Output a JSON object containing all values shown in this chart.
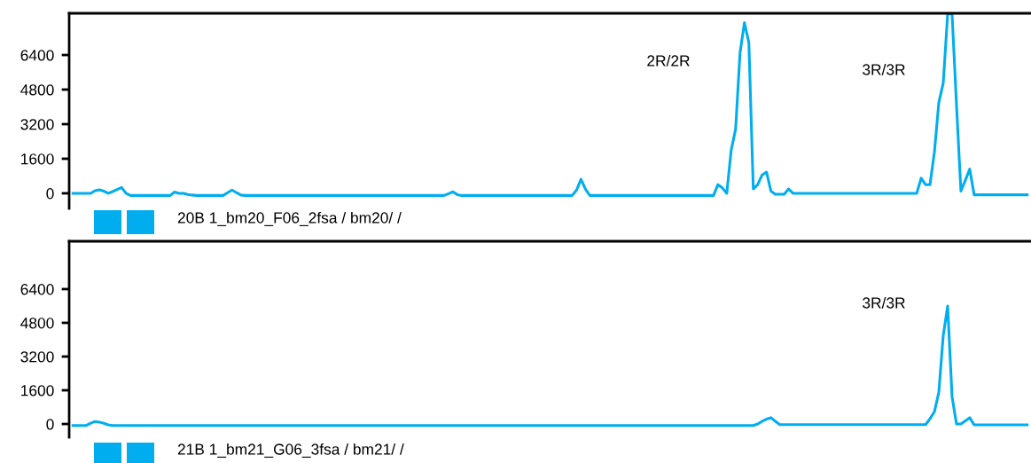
{
  "chart_data": [
    {
      "type": "line",
      "categories": [
        null,
        null,
        null,
        null,
        null,
        null,
        null,
        null,
        null,
        null,
        null,
        null,
        null,
        null,
        null,
        null,
        null,
        null,
        null,
        null,
        null,
        null,
        null,
        null,
        null,
        null,
        null,
        null,
        null,
        null,
        null,
        null,
        null,
        null,
        null,
        null,
        null,
        null,
        null,
        null,
        null,
        null,
        null,
        null,
        null,
        null,
        null,
        null,
        null,
        null,
        null,
        null,
        null,
        null,
        null,
        null,
        null,
        null,
        null,
        null,
        null,
        null,
        null,
        null,
        null,
        null,
        null,
        null,
        null,
        null,
        null,
        null,
        null,
        null,
        null,
        null,
        null,
        null,
        null,
        null,
        null,
        null,
        null,
        null,
        null,
        null,
        null,
        null,
        null,
        null,
        null,
        null,
        null,
        null,
        null,
        null,
        null,
        null,
        null,
        null,
        null,
        null,
        null,
        null,
        null,
        null,
        null,
        null,
        null,
        null,
        null,
        null,
        null,
        null,
        null,
        null,
        null,
        null,
        null,
        null,
        null,
        null,
        null,
        null,
        null,
        null,
        null,
        null,
        null,
        null,
        null,
        null,
        null,
        null,
        null,
        null,
        null,
        null,
        null,
        null,
        null,
        null,
        null,
        null,
        null,
        null,
        null,
        null,
        null,
        null,
        null,
        null,
        null,
        null,
        null,
        null,
        null,
        null,
        null,
        null,
        null,
        null,
        null,
        null,
        null,
        null,
        null,
        null,
        null,
        null,
        null,
        null,
        null,
        null,
        null,
        null,
        null,
        null,
        null,
        null,
        null,
        null,
        null,
        null,
        null,
        null,
        null,
        null,
        null,
        null,
        null,
        null,
        null,
        null,
        null,
        null,
        null,
        null,
        null,
        null,
        null,
        null,
        null,
        null,
        null,
        null,
        null,
        null,
        null,
        null,
        null,
        null,
        null,
        null,
        null,
        null,
        null
      ],
      "series": [
        {
          "color": "#00aeef",
          "values": [
            0,
            0,
            0,
            0,
            0,
            120,
            160,
            100,
            0,
            80,
            180,
            270,
            0,
            -100,
            -100,
            -100,
            -100,
            -100,
            -100,
            -100,
            -100,
            -100,
            -100,
            60,
            0,
            0,
            -50,
            -80,
            -100,
            -100,
            -100,
            -100,
            -100,
            -100,
            -100,
            30,
            150,
            30,
            -80,
            -100,
            -100,
            -100,
            -100,
            -100,
            -100,
            -100,
            -100,
            -100,
            -100,
            -100,
            -100,
            -100,
            -100,
            -100,
            -100,
            -100,
            -100,
            -100,
            -100,
            -100,
            -100,
            -100,
            -100,
            -100,
            -100,
            -100,
            -100,
            -100,
            -100,
            -100,
            -100,
            -100,
            -100,
            -100,
            -100,
            -100,
            -100,
            -100,
            -100,
            -100,
            -100,
            -100,
            -100,
            -100,
            -100,
            -20,
            70,
            -60,
            -100,
            -100,
            -100,
            -100,
            -100,
            -100,
            -100,
            -100,
            -100,
            -100,
            -100,
            -100,
            -100,
            -100,
            -100,
            -100,
            -100,
            -100,
            -100,
            -100,
            -100,
            -100,
            -100,
            -100,
            -100,
            -100,
            150,
            650,
            200,
            -100,
            -100,
            -100,
            -100,
            -100,
            -100,
            -100,
            -100,
            -100,
            -100,
            -100,
            -100,
            -100,
            -100,
            -100,
            -100,
            -100,
            -100,
            -100,
            -100,
            -100,
            -100,
            -100,
            -100,
            -100,
            -100,
            -100,
            -100,
            -100,
            400,
            250,
            0,
            2000,
            2970,
            6500,
            7900,
            6970,
            200,
            400,
            850,
            980,
            100,
            -40,
            -40,
            -40,
            200,
            0,
            0,
            0,
            0,
            0,
            0,
            0,
            0,
            0,
            0,
            0,
            0,
            0,
            0,
            0,
            0,
            0,
            0,
            0,
            0,
            0,
            0,
            0,
            0,
            0,
            0,
            0,
            0,
            0,
            700,
            400,
            400,
            1900,
            4200,
            5100,
            8300,
            8300,
            4100,
            100,
            600,
            1120,
            -70,
            -70,
            -70,
            -70,
            -70,
            -70,
            -70,
            -70,
            -70,
            -70,
            -70,
            -70,
            -70
          ]
        }
      ],
      "ylim": [
        -700,
        8330
      ],
      "yticks": [
        0,
        1600,
        3200,
        4800,
        6400
      ],
      "annotations": [
        "2R/2R",
        "3R/3R",
        "20B 1_bm20_F06_2fsa / bm20/ /"
      ],
      "tick_labels": "y",
      "grid": false,
      "legend": false
    },
    {
      "type": "line",
      "categories": [
        null,
        null,
        null,
        null,
        null,
        null,
        null,
        null,
        null,
        null,
        null,
        null,
        null,
        null,
        null,
        null,
        null,
        null,
        null,
        null,
        null,
        null,
        null,
        null,
        null,
        null,
        null,
        null,
        null,
        null,
        null,
        null,
        null,
        null,
        null,
        null,
        null,
        null,
        null,
        null,
        null,
        null,
        null,
        null,
        null,
        null,
        null,
        null,
        null,
        null,
        null,
        null,
        null,
        null,
        null,
        null,
        null,
        null,
        null,
        null,
        null,
        null,
        null,
        null,
        null,
        null,
        null,
        null,
        null,
        null,
        null,
        null,
        null,
        null,
        null,
        null,
        null,
        null,
        null,
        null,
        null,
        null,
        null,
        null,
        null,
        null,
        null,
        null,
        null,
        null,
        null,
        null,
        null,
        null,
        null,
        null,
        null,
        null,
        null,
        null,
        null,
        null,
        null,
        null,
        null,
        null,
        null,
        null,
        null,
        null,
        null,
        null,
        null,
        null,
        null,
        null,
        null,
        null,
        null,
        null,
        null,
        null,
        null,
        null,
        null,
        null,
        null,
        null,
        null,
        null,
        null,
        null,
        null,
        null,
        null,
        null,
        null,
        null,
        null,
        null,
        null,
        null,
        null,
        null,
        null,
        null,
        null,
        null,
        null,
        null,
        null,
        null,
        null,
        null,
        null,
        null,
        null,
        null,
        null,
        null,
        null,
        null,
        null,
        null,
        null,
        null,
        null,
        null,
        null,
        null,
        null,
        null,
        null,
        null,
        null,
        null,
        null,
        null,
        null,
        null,
        null,
        null,
        null,
        null,
        null,
        null,
        null,
        null,
        null,
        null,
        null,
        null,
        null,
        null,
        null,
        null,
        null,
        null,
        null,
        null,
        null,
        null,
        null,
        null,
        null,
        null,
        null,
        null,
        null,
        null,
        null,
        null,
        null,
        null,
        null,
        null,
        null
      ],
      "series": [
        {
          "color": "#00aeef",
          "values": [
            -70,
            -70,
            -70,
            -70,
            40,
            120,
            90,
            30,
            -40,
            -70,
            -70,
            -70,
            -70,
            -70,
            -70,
            -70,
            -70,
            -70,
            -70,
            -70,
            -70,
            -70,
            -70,
            -70,
            -70,
            -70,
            -70,
            -70,
            -70,
            -70,
            -70,
            -70,
            -70,
            -70,
            -70,
            -70,
            -70,
            -70,
            -70,
            -70,
            -70,
            -70,
            -70,
            -70,
            -70,
            -70,
            -70,
            -70,
            -70,
            -70,
            -70,
            -70,
            -70,
            -70,
            -70,
            -70,
            -70,
            -70,
            -70,
            -70,
            -70,
            -70,
            -70,
            -70,
            -70,
            -70,
            -70,
            -70,
            -70,
            -70,
            -70,
            -70,
            -70,
            -70,
            -70,
            -70,
            -70,
            -70,
            -70,
            -70,
            -70,
            -70,
            -70,
            -70,
            -70,
            -70,
            -70,
            -70,
            -70,
            -70,
            -70,
            -70,
            -70,
            -70,
            -70,
            -70,
            -70,
            -70,
            -70,
            -70,
            -70,
            -70,
            -70,
            -70,
            -70,
            -70,
            -70,
            -70,
            -70,
            -70,
            -70,
            -70,
            -70,
            -70,
            -70,
            -70,
            -70,
            -70,
            -70,
            -70,
            -70,
            -70,
            -70,
            -70,
            -70,
            -70,
            -70,
            -70,
            -70,
            -70,
            -70,
            -70,
            -70,
            -70,
            -70,
            -70,
            -70,
            -70,
            -70,
            -70,
            -70,
            -70,
            -70,
            -70,
            -70,
            -70,
            -70,
            -70,
            -70,
            -70,
            -70,
            -70,
            -70,
            -70,
            -70,
            0,
            130,
            230,
            300,
            130,
            -30,
            -30,
            -30,
            -30,
            -30,
            -30,
            -30,
            -30,
            -30,
            -30,
            -30,
            -30,
            -30,
            -30,
            -30,
            -30,
            -30,
            -30,
            -30,
            -30,
            -30,
            -30,
            -30,
            -30,
            -30,
            -30,
            -30,
            -30,
            -30,
            -30,
            -30,
            -30,
            -30,
            -30,
            250,
            580,
            1500,
            4200,
            5600,
            1300,
            0,
            0,
            150,
            300,
            -40,
            -40,
            -40,
            -40,
            -40,
            -40,
            -40,
            -40,
            -40,
            -40,
            -40,
            -40,
            -40
          ]
        }
      ],
      "ylim": [
        -630,
        8670
      ],
      "yticks": [
        0,
        1600,
        3200,
        4800,
        6400
      ],
      "annotations": [
        "3R/3R",
        "21B 1_bm21_G06_3fsa / bm21/ /"
      ],
      "tick_labels": "y",
      "grid": false,
      "legend": false
    }
  ]
}
